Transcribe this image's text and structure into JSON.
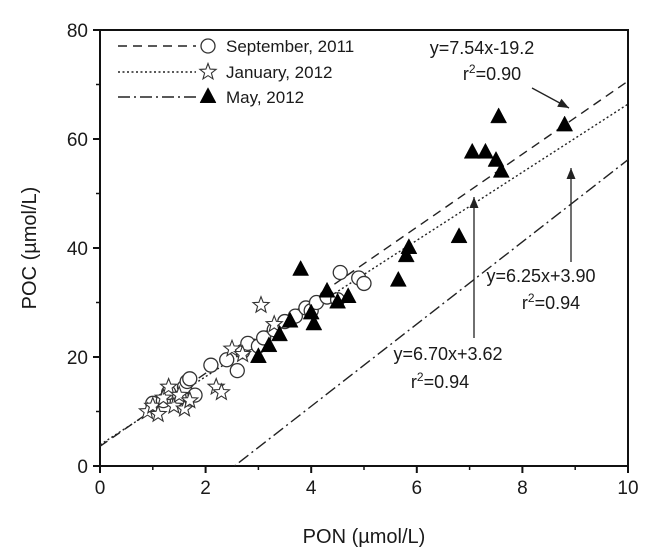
{
  "chart_data": {
    "type": "scatter",
    "xlabel": "PON (µmol/L)",
    "ylabel": "POC (µmol/L)",
    "xlim": [
      0,
      10
    ],
    "ylim": [
      0,
      80
    ],
    "xticks": [
      0,
      2,
      4,
      6,
      8,
      10
    ],
    "yticks": [
      0,
      20,
      40,
      60,
      80
    ],
    "grid": false,
    "legend_position": "top-left",
    "series": [
      {
        "name": "September, 2011",
        "marker": "circle-open",
        "line_style": "dashed",
        "fit": {
          "slope": 6.7,
          "intercept": 3.62
        },
        "points": [
          [
            1.0,
            11.5
          ],
          [
            1.2,
            12.0
          ],
          [
            1.3,
            13.5
          ],
          [
            1.5,
            12.5
          ],
          [
            1.6,
            14.5
          ],
          [
            1.65,
            15.5
          ],
          [
            1.7,
            16.0
          ],
          [
            1.8,
            13.0
          ],
          [
            2.1,
            18.5
          ],
          [
            2.4,
            19.5
          ],
          [
            2.6,
            17.5
          ],
          [
            2.7,
            21.0
          ],
          [
            2.8,
            22.5
          ],
          [
            3.0,
            22.0
          ],
          [
            3.1,
            23.5
          ],
          [
            3.3,
            25.0
          ],
          [
            3.5,
            26.5
          ],
          [
            3.7,
            27.5
          ],
          [
            3.9,
            29.0
          ],
          [
            4.0,
            28.5
          ],
          [
            4.1,
            30.0
          ],
          [
            4.3,
            31.0
          ],
          [
            4.5,
            30.5
          ],
          [
            4.55,
            35.5
          ],
          [
            4.9,
            34.5
          ],
          [
            5.0,
            33.5
          ]
        ]
      },
      {
        "name": "January, 2012",
        "marker": "star-open",
        "line_style": "dotted",
        "fit": {
          "slope": 6.25,
          "intercept": 3.9
        },
        "points": [
          [
            0.9,
            10.0
          ],
          [
            1.0,
            11.0
          ],
          [
            1.1,
            9.5
          ],
          [
            1.2,
            12.5
          ],
          [
            1.3,
            14.5
          ],
          [
            1.4,
            11.0
          ],
          [
            1.5,
            13.0
          ],
          [
            1.6,
            10.5
          ],
          [
            1.7,
            12.0
          ],
          [
            2.2,
            14.5
          ],
          [
            2.3,
            13.5
          ],
          [
            2.5,
            21.5
          ],
          [
            2.7,
            20.5
          ],
          [
            3.05,
            29.5
          ],
          [
            3.3,
            26.0
          ]
        ]
      },
      {
        "name": "May, 2012",
        "marker": "triangle-filled",
        "line_style": "dash-dot",
        "fit": {
          "slope": 7.54,
          "intercept": -19.2
        },
        "points": [
          [
            3.0,
            20.0
          ],
          [
            3.2,
            22.0
          ],
          [
            3.4,
            24.0
          ],
          [
            3.6,
            26.5
          ],
          [
            3.8,
            36.0
          ],
          [
            4.0,
            28.0
          ],
          [
            4.05,
            26.0
          ],
          [
            4.3,
            32.0
          ],
          [
            4.5,
            30.0
          ],
          [
            4.7,
            31.0
          ],
          [
            5.65,
            34.0
          ],
          [
            5.8,
            38.5
          ],
          [
            5.85,
            40.0
          ],
          [
            6.8,
            42.0
          ],
          [
            7.05,
            57.5
          ],
          [
            7.3,
            57.5
          ],
          [
            7.5,
            56.0
          ],
          [
            7.55,
            64.0
          ],
          [
            7.6,
            54.0
          ],
          [
            8.8,
            62.5
          ]
        ]
      }
    ],
    "annotations": [
      {
        "eq": "y=7.54x-19.2",
        "r_prefix": "r",
        "r_sup": "2",
        "r_value": "=0.90"
      },
      {
        "eq": "y=6.25x+3.90",
        "r_prefix": "r",
        "r_sup": "2",
        "r_value": "=0.94"
      },
      {
        "eq": "y=6.70x+3.62",
        "r_prefix": "r",
        "r_sup": "2",
        "r_value": "=0.94"
      }
    ]
  }
}
